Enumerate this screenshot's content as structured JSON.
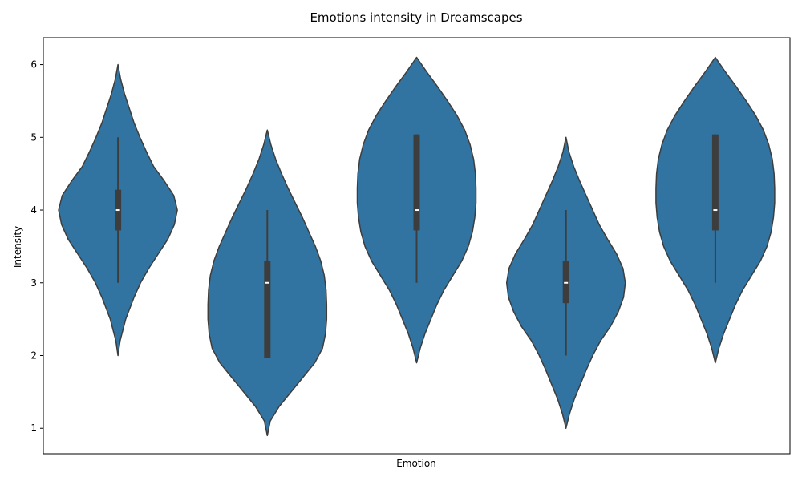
{
  "chart_data": {
    "type": "violin",
    "title": "Emotions intensity in Dreamscapes",
    "xlabel": "Emotion",
    "ylabel": "Intensity",
    "ylim": [
      0.65,
      6.37
    ],
    "yticks": [
      1,
      2,
      3,
      4,
      5,
      6
    ],
    "x_tick_labels_visible": false,
    "grid": false,
    "color": "#3274a1",
    "edge_color": "#3d3d3d",
    "violins": [
      {
        "min": 2.0,
        "max": 6.0,
        "q1": 3.72,
        "median": 4.0,
        "q3": 4.28,
        "whisker_low": 3.0,
        "whisker_high": 5.0,
        "density": [
          [
            2.0,
            0.0
          ],
          [
            2.2,
            0.035
          ],
          [
            2.5,
            0.13
          ],
          [
            2.8,
            0.27
          ],
          [
            3.0,
            0.38
          ],
          [
            3.2,
            0.52
          ],
          [
            3.4,
            0.68
          ],
          [
            3.6,
            0.84
          ],
          [
            3.8,
            0.95
          ],
          [
            4.0,
            1.0
          ],
          [
            4.2,
            0.94
          ],
          [
            4.4,
            0.78
          ],
          [
            4.6,
            0.6
          ],
          [
            4.8,
            0.48
          ],
          [
            5.0,
            0.37
          ],
          [
            5.2,
            0.27
          ],
          [
            5.4,
            0.19
          ],
          [
            5.6,
            0.11
          ],
          [
            5.8,
            0.045
          ],
          [
            6.0,
            0.0
          ]
        ]
      },
      {
        "min": 0.9,
        "max": 5.1,
        "q1": 1.97,
        "median": 3.0,
        "q3": 3.3,
        "whisker_low": 1.97,
        "whisker_high": 4.0,
        "density": [
          [
            0.9,
            0.0
          ],
          [
            1.1,
            0.05
          ],
          [
            1.3,
            0.2
          ],
          [
            1.5,
            0.4
          ],
          [
            1.7,
            0.6
          ],
          [
            1.9,
            0.8
          ],
          [
            2.1,
            0.93
          ],
          [
            2.3,
            0.98
          ],
          [
            2.5,
            1.0
          ],
          [
            2.7,
            1.0
          ],
          [
            2.9,
            0.99
          ],
          [
            3.1,
            0.96
          ],
          [
            3.3,
            0.9
          ],
          [
            3.5,
            0.81
          ],
          [
            3.7,
            0.7
          ],
          [
            3.9,
            0.59
          ],
          [
            4.1,
            0.47
          ],
          [
            4.3,
            0.35
          ],
          [
            4.5,
            0.24
          ],
          [
            4.7,
            0.14
          ],
          [
            4.9,
            0.06
          ],
          [
            5.1,
            0.0
          ]
        ]
      },
      {
        "min": 1.9,
        "max": 6.1,
        "q1": 3.72,
        "median": 4.0,
        "q3": 5.04,
        "whisker_low": 3.0,
        "whisker_high": 5.04,
        "density": [
          [
            1.9,
            0.0
          ],
          [
            2.1,
            0.06
          ],
          [
            2.3,
            0.14
          ],
          [
            2.5,
            0.24
          ],
          [
            2.7,
            0.34
          ],
          [
            2.9,
            0.46
          ],
          [
            3.1,
            0.61
          ],
          [
            3.3,
            0.76
          ],
          [
            3.5,
            0.87
          ],
          [
            3.7,
            0.94
          ],
          [
            3.9,
            0.98
          ],
          [
            4.1,
            1.0
          ],
          [
            4.3,
            1.0
          ],
          [
            4.5,
            0.99
          ],
          [
            4.7,
            0.96
          ],
          [
            4.9,
            0.9
          ],
          [
            5.1,
            0.81
          ],
          [
            5.3,
            0.68
          ],
          [
            5.5,
            0.52
          ],
          [
            5.7,
            0.35
          ],
          [
            5.9,
            0.17
          ],
          [
            6.1,
            0.0
          ]
        ]
      },
      {
        "min": 1.0,
        "max": 5.0,
        "q1": 2.72,
        "median": 3.0,
        "q3": 3.3,
        "whisker_low": 2.0,
        "whisker_high": 4.0,
        "density": [
          [
            1.0,
            0.0
          ],
          [
            1.2,
            0.06
          ],
          [
            1.4,
            0.14
          ],
          [
            1.6,
            0.24
          ],
          [
            1.8,
            0.34
          ],
          [
            2.0,
            0.45
          ],
          [
            2.2,
            0.58
          ],
          [
            2.4,
            0.75
          ],
          [
            2.6,
            0.88
          ],
          [
            2.8,
            0.97
          ],
          [
            3.0,
            1.0
          ],
          [
            3.2,
            0.96
          ],
          [
            3.4,
            0.85
          ],
          [
            3.6,
            0.7
          ],
          [
            3.8,
            0.56
          ],
          [
            4.0,
            0.45
          ],
          [
            4.2,
            0.34
          ],
          [
            4.4,
            0.23
          ],
          [
            4.6,
            0.13
          ],
          [
            4.8,
            0.05
          ],
          [
            5.0,
            0.0
          ]
        ]
      },
      {
        "min": 1.9,
        "max": 6.1,
        "q1": 3.72,
        "median": 4.0,
        "q3": 5.04,
        "whisker_low": 3.0,
        "whisker_high": 5.04,
        "density": [
          [
            1.9,
            0.0
          ],
          [
            2.1,
            0.06
          ],
          [
            2.3,
            0.14
          ],
          [
            2.5,
            0.24
          ],
          [
            2.7,
            0.34
          ],
          [
            2.9,
            0.46
          ],
          [
            3.1,
            0.61
          ],
          [
            3.3,
            0.76
          ],
          [
            3.5,
            0.87
          ],
          [
            3.7,
            0.94
          ],
          [
            3.9,
            0.98
          ],
          [
            4.1,
            1.0
          ],
          [
            4.3,
            1.0
          ],
          [
            4.5,
            0.99
          ],
          [
            4.7,
            0.96
          ],
          [
            4.9,
            0.9
          ],
          [
            5.1,
            0.81
          ],
          [
            5.3,
            0.68
          ],
          [
            5.5,
            0.52
          ],
          [
            5.7,
            0.35
          ],
          [
            5.9,
            0.17
          ],
          [
            6.1,
            0.0
          ]
        ]
      }
    ]
  }
}
